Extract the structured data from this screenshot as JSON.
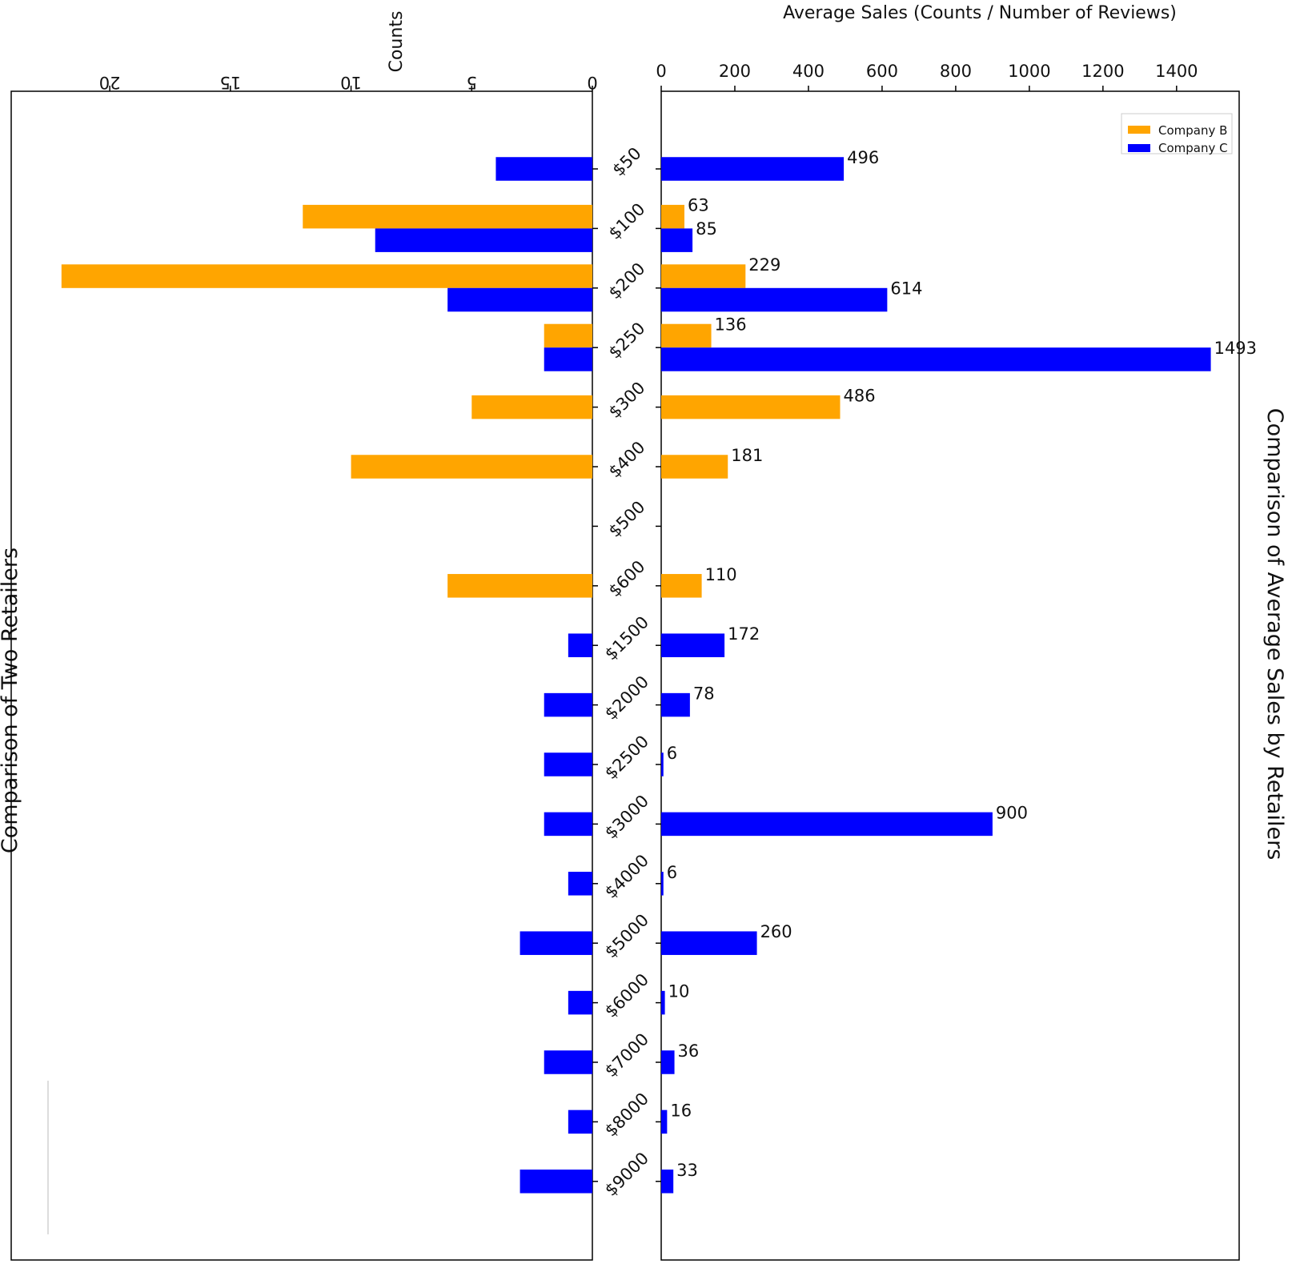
{
  "chart_data": [
    {
      "type": "bar",
      "title": "Comparison of Average Sales by Retailers",
      "ylabel": "Average Sales (Counts / Number of Reviews)",
      "xlabel": "",
      "ylim": [
        0,
        1570
      ],
      "yticks": [
        0,
        200,
        400,
        600,
        800,
        1000,
        1200,
        1400
      ],
      "categories": [
        "$50",
        "$100",
        "$200",
        "$250",
        "$300",
        "$400",
        "$500",
        "$600",
        "$1500",
        "$2000",
        "$2500",
        "$3000",
        "$4000",
        "$5000",
        "$6000",
        "$7000",
        "$8000",
        "$9000"
      ],
      "series": [
        {
          "name": "Company B",
          "color": "#FFA500",
          "values": [
            null,
            63,
            229,
            136,
            486,
            181,
            null,
            110,
            null,
            null,
            null,
            null,
            null,
            null,
            null,
            null,
            null,
            null
          ]
        },
        {
          "name": "Company C",
          "color": "#0000FF",
          "values": [
            496,
            85,
            614,
            1493,
            null,
            null,
            null,
            null,
            172,
            78,
            6,
            900,
            6,
            260,
            10,
            36,
            16,
            33
          ]
        }
      ],
      "data_labels": true,
      "legend": {
        "placement": "top-right",
        "entries": [
          "Company B",
          "Company C"
        ]
      }
    },
    {
      "type": "bar",
      "title": "Comparison of Two Retailers",
      "ylabel": "Counts",
      "xlabel": "",
      "ylim": [
        0,
        23
      ],
      "yticks": [
        0,
        5,
        10,
        15,
        20
      ],
      "categories": [
        "$50",
        "$100",
        "$200",
        "$250",
        "$300",
        "$400",
        "$500",
        "$600",
        "$1500",
        "$2000",
        "$2500",
        "$3000",
        "$4000",
        "$5000",
        "$6000",
        "$7000",
        "$8000",
        "$9000"
      ],
      "series": [
        {
          "name": "Company B",
          "color": "#FFA500",
          "values": [
            null,
            12,
            22,
            2,
            5,
            10,
            null,
            6,
            null,
            null,
            null,
            null,
            null,
            null,
            null,
            null,
            null,
            null
          ]
        },
        {
          "name": "Company C",
          "color": "#0000FF",
          "values": [
            4,
            9,
            6,
            2,
            null,
            null,
            null,
            null,
            1,
            2,
            2,
            2,
            1,
            3,
            1,
            2,
            1,
            3
          ]
        }
      ],
      "data_labels": false
    }
  ]
}
